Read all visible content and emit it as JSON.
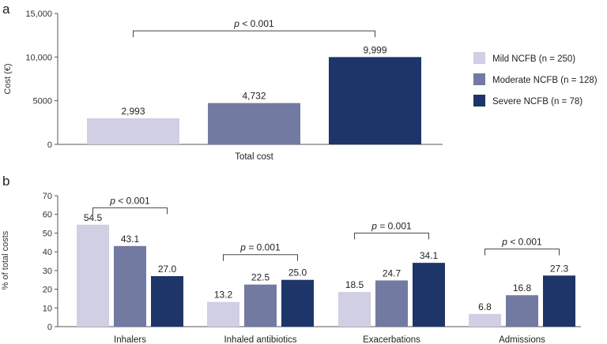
{
  "colors": {
    "mild": "#d0cfe3",
    "moderate": "#737aa2",
    "severe": "#1d3569"
  },
  "chart_data": [
    {
      "panel": "a",
      "type": "bar",
      "ylabel": "Cost (€)",
      "ylim": [
        0,
        15000
      ],
      "yticks": [
        0,
        5000,
        10000,
        15000
      ],
      "ytick_labels": [
        "0",
        "5000",
        "10,000",
        "15,000"
      ],
      "categories": [
        "Total cost"
      ],
      "series": [
        {
          "name": "Mild NCFB (n = 250)",
          "color_key": "mild",
          "values": [
            2993
          ],
          "labels": [
            "2,993"
          ]
        },
        {
          "name": "Moderate NCFB (n = 128)",
          "color_key": "moderate",
          "values": [
            4732
          ],
          "labels": [
            "4,732"
          ]
        },
        {
          "name": "Severe NCFB (n = 78)",
          "color_key": "severe",
          "values": [
            9999
          ],
          "labels": [
            "9,999"
          ]
        }
      ],
      "annotations": [
        {
          "text": "p < 0.001",
          "category": "Total cost",
          "from_series": 0,
          "to_series": 2,
          "y": 13000
        }
      ],
      "legend_position": "right"
    },
    {
      "panel": "b",
      "type": "bar",
      "ylabel": "% of total costs",
      "ylim": [
        0,
        70
      ],
      "yticks": [
        0,
        10,
        20,
        30,
        40,
        50,
        60,
        70
      ],
      "ytick_labels": [
        "0",
        "10",
        "20",
        "30",
        "40",
        "50",
        "60",
        "70"
      ],
      "categories": [
        "Inhalers",
        "Inhaled antibiotics",
        "Exacerbations",
        "Admissions"
      ],
      "series": [
        {
          "name": "Mild NCFB (n = 250)",
          "color_key": "mild",
          "values": [
            54.5,
            13.2,
            18.5,
            6.8
          ],
          "labels": [
            "54.5",
            "13.2",
            "18.5",
            "6.8"
          ]
        },
        {
          "name": "Moderate NCFB (n = 128)",
          "color_key": "moderate",
          "values": [
            43.1,
            22.5,
            24.7,
            16.8
          ],
          "labels": [
            "43.1",
            "22.5",
            "24.7",
            "16.8"
          ]
        },
        {
          "name": "Severe NCFB (n = 78)",
          "color_key": "severe",
          "values": [
            27.0,
            25.0,
            34.1,
            27.3
          ],
          "labels": [
            "27.0",
            "25.0",
            "34.1",
            "27.3"
          ]
        }
      ],
      "annotations": [
        {
          "text": "p < 0.001",
          "category": "Inhalers",
          "from_series": 0,
          "to_series": 2,
          "y": 63.5
        },
        {
          "text": "p = 0.001",
          "category": "Inhaled antibiotics",
          "from_series": 0,
          "to_series": 2,
          "y": 38.5
        },
        {
          "text": "p = 0.001",
          "category": "Exacerbations",
          "from_series": 0,
          "to_series": 2,
          "y": 50
        },
        {
          "text": "p < 0.001",
          "category": "Admissions",
          "from_series": 0,
          "to_series": 2,
          "y": 41.5
        }
      ]
    }
  ]
}
